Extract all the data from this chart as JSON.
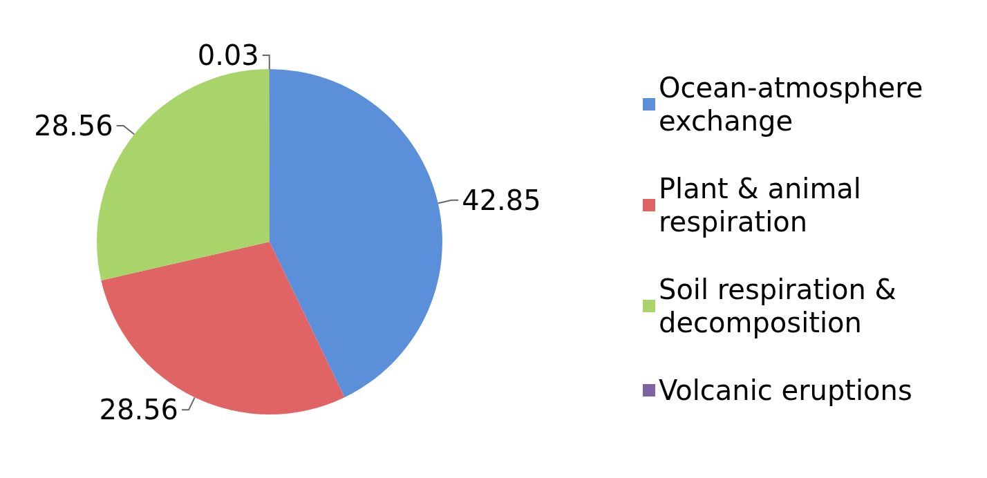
{
  "chart_data": {
    "type": "pie",
    "categories": [
      "Ocean-atmosphere exchange",
      "Plant & animal respiration",
      "Soil respiration & decomposition",
      "Volcanic eruptions"
    ],
    "values": [
      42.85,
      28.56,
      28.56,
      0.03
    ],
    "colors": [
      "#5b8fd9",
      "#e06464",
      "#a9d46a",
      "#8064a2"
    ],
    "data_labels": true,
    "legend": "right"
  }
}
